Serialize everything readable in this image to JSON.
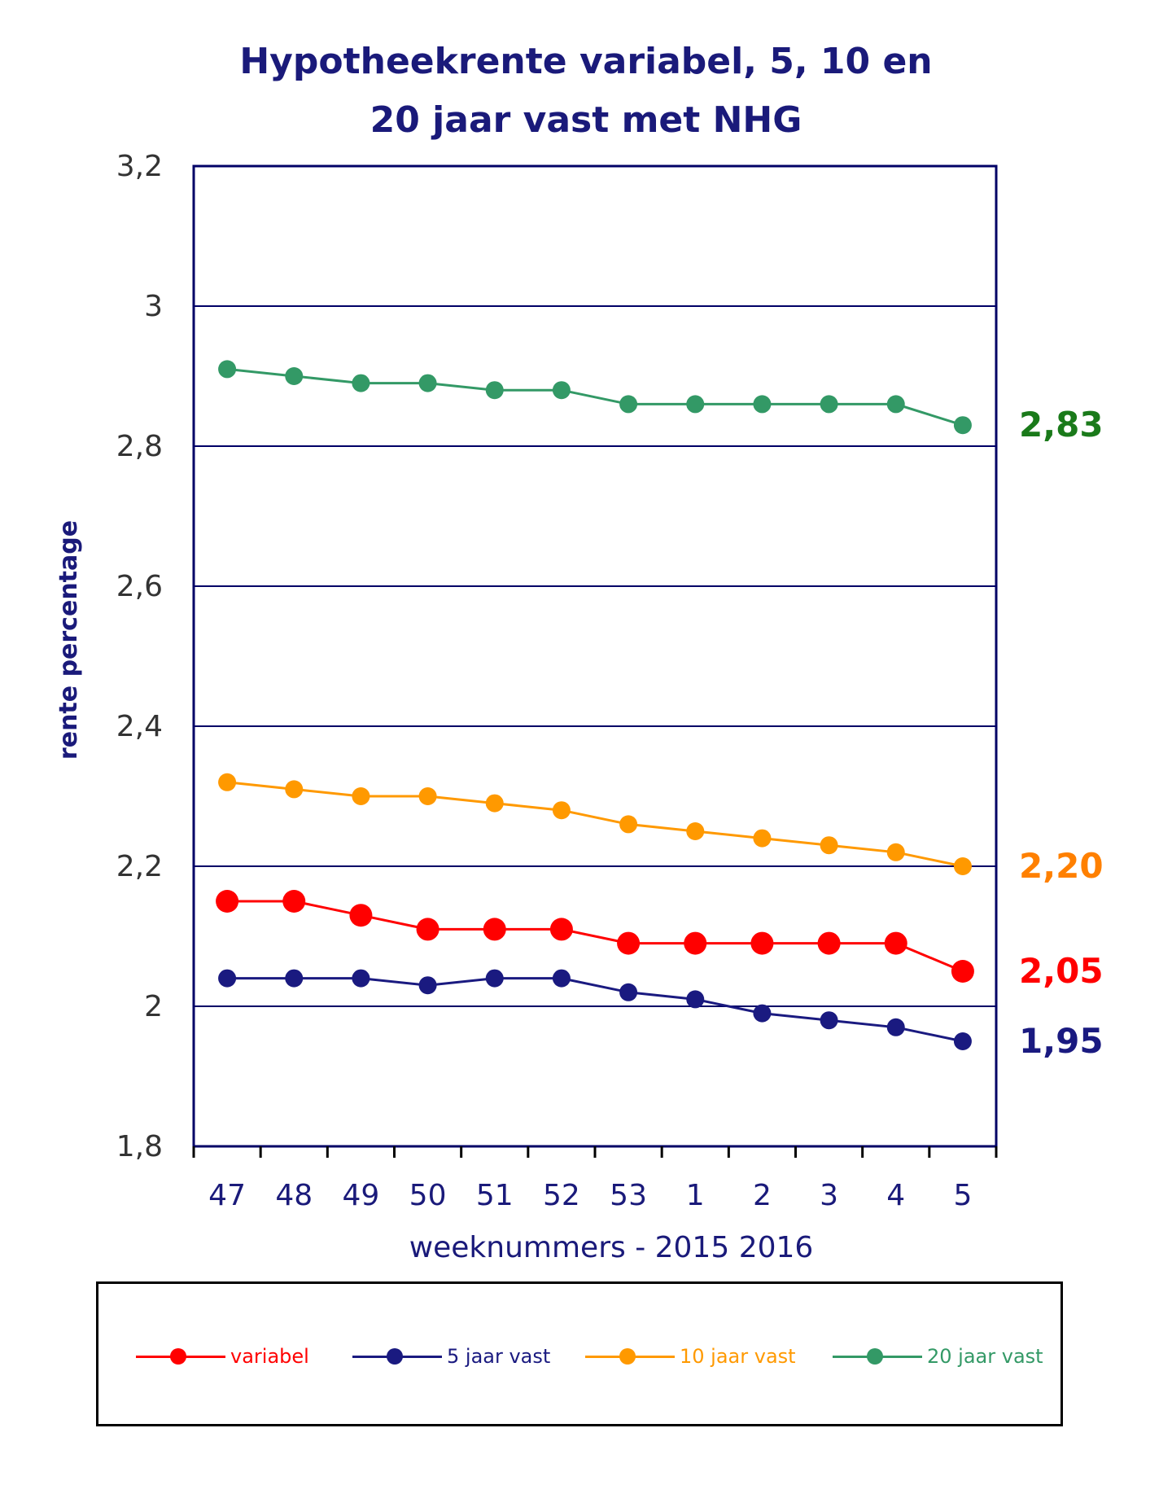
{
  "chart_data": {
    "type": "line",
    "title_lines": [
      "Hypotheekrente variabel, 5, 10 en",
      "20 jaar vast met NHG"
    ],
    "xlabel": "weeknummers - 2015 2016",
    "ylabel": "rente percentage",
    "categories": [
      "47",
      "48",
      "49",
      "50",
      "51",
      "52",
      "53",
      "1",
      "2",
      "3",
      "4",
      "5"
    ],
    "ylim": [
      1.8,
      3.2
    ],
    "yticks": [
      {
        "value": 1.8,
        "label": "1,8"
      },
      {
        "value": 2.0,
        "label": "2"
      },
      {
        "value": 2.2,
        "label": "2,2"
      },
      {
        "value": 2.4,
        "label": "2,4"
      },
      {
        "value": 2.6,
        "label": "2,6"
      },
      {
        "value": 2.8,
        "label": "2,8"
      },
      {
        "value": 3.0,
        "label": "3"
      },
      {
        "value": 3.2,
        "label": "3,2"
      }
    ],
    "grid": true,
    "legend_position": "bottom",
    "series": [
      {
        "name": "variabel",
        "color": "#ff0000",
        "marker": "large",
        "values": [
          2.15,
          2.15,
          2.13,
          2.11,
          2.11,
          2.11,
          2.09,
          2.09,
          2.09,
          2.09,
          2.09,
          2.05
        ],
        "end_label": "2,05"
      },
      {
        "name": "5 jaar vast",
        "color": "#1a1a80",
        "marker": "small",
        "values": [
          2.04,
          2.04,
          2.04,
          2.03,
          2.04,
          2.04,
          2.02,
          2.01,
          1.99,
          1.98,
          1.97,
          1.95
        ],
        "end_label": "1,95"
      },
      {
        "name": "10 jaar vast",
        "color": "#ff9900",
        "marker": "small",
        "values": [
          2.32,
          2.31,
          2.3,
          2.3,
          2.29,
          2.28,
          2.26,
          2.25,
          2.24,
          2.23,
          2.22,
          2.2
        ],
        "end_label": "2,20"
      },
      {
        "name": "20 jaar vast",
        "color": "#339966",
        "marker": "small",
        "values": [
          2.91,
          2.9,
          2.89,
          2.89,
          2.88,
          2.88,
          2.86,
          2.86,
          2.86,
          2.86,
          2.86,
          2.83
        ],
        "end_label": "2,83"
      }
    ],
    "end_label_colors": {
      "variabel": "#ff0000",
      "5 jaar vast": "#1a1a80",
      "10 jaar vast": "#ff8000",
      "20 jaar vast": "#1a7a1a"
    }
  }
}
